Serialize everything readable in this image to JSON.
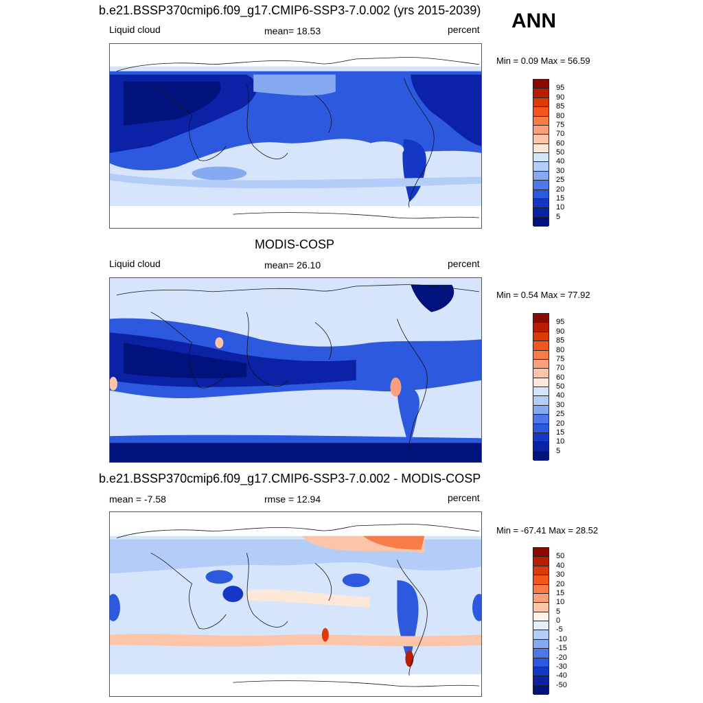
{
  "season": "ANN",
  "panels": [
    {
      "title": "b.e21.BSSP370cmip6.f09_g17.CMIP6-SSP3-7.0.002 (yrs 2015-2039)",
      "left_label": "Liquid cloud",
      "center_label": "mean=  18.53",
      "units": "percent",
      "minmax": "Min =   0.09 Max =  56.59",
      "colorbar_labels": [
        "95",
        "90",
        "85",
        "80",
        "75",
        "70",
        "60",
        "50",
        "40",
        "30",
        "25",
        "20",
        "15",
        "10",
        "5"
      ],
      "colorbar_colors": [
        "#8b0a00",
        "#b81d00",
        "#dd3a0a",
        "#f2561c",
        "#f87b48",
        "#fba07a",
        "#fcc4a8",
        "#fde8d8",
        "#d6e5fb",
        "#b3cdf8",
        "#85aaf2",
        "#4e78ea",
        "#2d59df",
        "#1437c6",
        "#0c22a6",
        "#00137d"
      ]
    },
    {
      "title": "MODIS-COSP",
      "left_label": "Liquid cloud",
      "center_label": "mean=  26.10",
      "units": "percent",
      "minmax": "Min =   0.54 Max =  77.92",
      "colorbar_labels": [
        "95",
        "90",
        "85",
        "80",
        "75",
        "70",
        "60",
        "50",
        "40",
        "30",
        "25",
        "20",
        "15",
        "10",
        "5"
      ],
      "colorbar_colors": [
        "#8b0a00",
        "#b81d00",
        "#dd3a0a",
        "#f2561c",
        "#f87b48",
        "#fba07a",
        "#fcc4a8",
        "#fde8d8",
        "#d6e5fb",
        "#b3cdf8",
        "#85aaf2",
        "#4e78ea",
        "#2d59df",
        "#1437c6",
        "#0c22a6",
        "#00137d"
      ]
    },
    {
      "title": "b.e21.BSSP370cmip6.f09_g17.CMIP6-SSP3-7.0.002 - MODIS-COSP",
      "left_label": "mean =  -7.58",
      "center_label": "rmse =  12.94",
      "units": "percent",
      "minmax": "Min = -67.41 Max =  28.52",
      "colorbar_labels": [
        "50",
        "40",
        "30",
        "20",
        "15",
        "10",
        "5",
        "0",
        "-5",
        "-10",
        "-15",
        "-20",
        "-30",
        "-40",
        "-50"
      ],
      "colorbar_colors": [
        "#8b0a00",
        "#b81d00",
        "#dd3a0a",
        "#f2561c",
        "#f87b48",
        "#fba07a",
        "#fcc4a8",
        "#fdf2ea",
        "#e6eefc",
        "#b3cdf8",
        "#85aaf2",
        "#4e78ea",
        "#2d59df",
        "#1437c6",
        "#0c22a6",
        "#00137d"
      ]
    }
  ]
}
